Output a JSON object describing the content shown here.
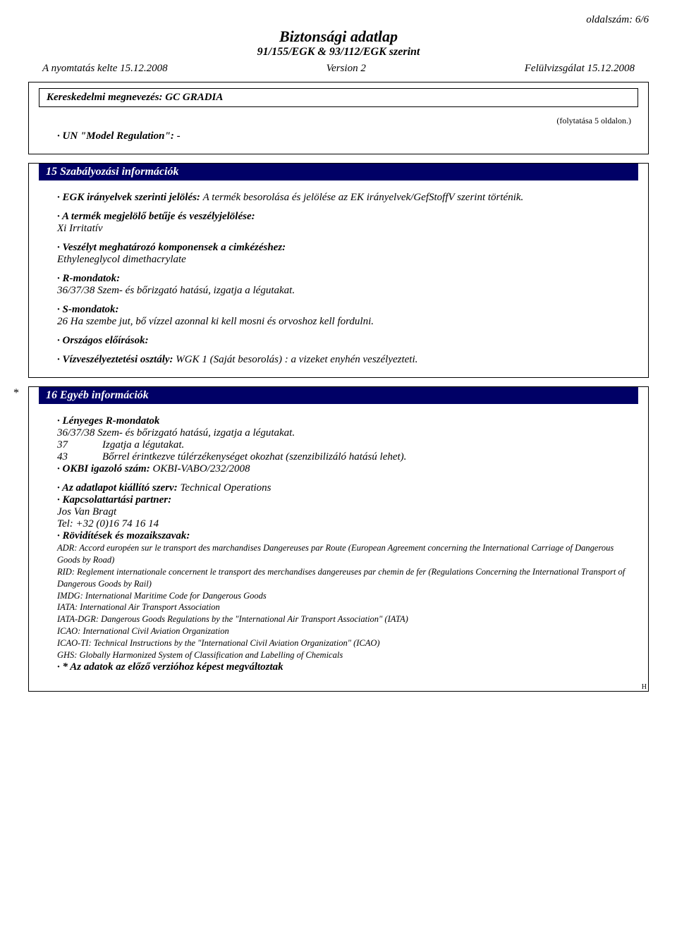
{
  "page_num": "oldalszám: 6/6",
  "doc_title": "Biztonsági adatlap",
  "doc_subtitle": "91/155/EGK & 93/112/EGK szerint",
  "meta": {
    "print_date": "A nyomtatás kelte 15.12.2008",
    "version": "Version 2",
    "revision": "Felülvizsgálat 15.12.2008"
  },
  "trade_name_label": "Kereskedelmi megnevezés: GC GRADIA",
  "cont_note": "(folytatása 5 oldalon.)",
  "un_regulation": {
    "label": "UN \"Model Regulation\": ",
    "value": "-"
  },
  "section15": {
    "title": "15 Szabályozási információk",
    "egk": {
      "label": "EGK irányelvek szerinti jelölés: ",
      "value": "A termék besorolása és jelölése az EK irányelvek/GefStoffV szerint történik."
    },
    "symbol_label": "A termék megjelölő betűje és veszélyjelölése:",
    "symbol_value": "Xi Irritatív",
    "components_label": "Veszélyt meghatározó komponensek a cimkézéshez:",
    "components_value": "Ethyleneglycol dimethacrylate",
    "r_label": "R-mondatok:",
    "r_value": "36/37/38 Szem- és bőrizgató hatású, izgatja a légutakat.",
    "s_label": "S-mondatok:",
    "s_value": "26 Ha szembe jut, bő vízzel azonnal ki kell mosni és orvoshoz kell fordulni.",
    "national_label": "Országos előírások:",
    "water_label": "Vízveszélyeztetési osztály: ",
    "water_value": "WGK 1 (Saját besorolás) : a vizeket enyhén veszélyezteti."
  },
  "section16": {
    "title": "16 Egyéb információk",
    "r_label": "Lényeges R-mondatok",
    "r_rows": [
      {
        "code": "36/37/38",
        "text": "Szem- és bőrizgató hatású, izgatja a légutakat."
      },
      {
        "code": "37",
        "text": "Izgatja a légutakat."
      },
      {
        "code": "43",
        "text": "Bőrrel érintkezve túlérzékenységet okozhat (szenzibilizáló hatású lehet)."
      }
    ],
    "okbi_label": "OKBI igazoló szám:  ",
    "okbi_value": "OKBI-VABO/232/2008",
    "issuer_label": "Az adatlapot kiállító szerv: ",
    "issuer_value": "Technical Operations",
    "contact_label": "Kapcsolattartási partner:",
    "contact_name": "Jos Van Bragt",
    "contact_tel": "Tel: +32 (0)16 74 16 14",
    "abbrev_label": "Rövidítések és mozaikszavak:",
    "abbrev_lines": [
      "ADR: Accord européen sur le transport des marchandises Dangereuses par Route (European Agreement concerning the International Carriage of Dangerous Goods by Road)",
      "RID: Reglement internationale concernent le transport des merchandises dangereuses par chemin de fer (Regulations Concerning the International Transport of Dangerous Goods by Rail)",
      "IMDG: International Maritime Code for Dangerous Goods",
      "IATA: International Air Transport Association",
      "IATA-DGR: Dangerous Goods Regulations by the \"International Air Transport Association\" (IATA)",
      "ICAO: International Civil Aviation Organization",
      "ICAO-TI: Technical Instructions by the \"International Civil Aviation Organization\" (ICAO)",
      "GHS: Globally Harmonized System of Classification and Labelling of Chemicals"
    ],
    "change_note": "* Az adatok az előző verzióhoz képest megváltoztak"
  },
  "footer_h": "H"
}
